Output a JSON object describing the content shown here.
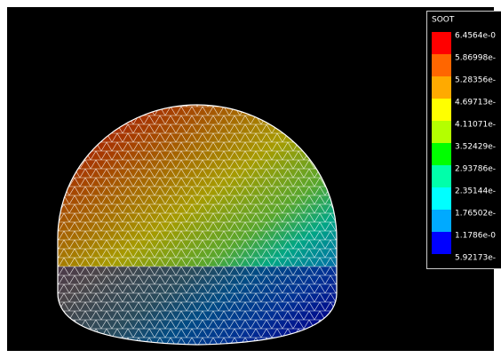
{
  "legend": {
    "title": "SOOT",
    "colors": [
      "#ff0000",
      "#ff6600",
      "#ffaa00",
      "#ffff00",
      "#b4ff00",
      "#00ff00",
      "#00ffaa",
      "#00ffff",
      "#00aaff",
      "#0000ff"
    ],
    "labels": [
      "6.4564e-0",
      "5.86998e-",
      "5.28356e-",
      "4.69713e-",
      "4.11071e-",
      "3.52429e-",
      "2.93786e-",
      "2.35144e-",
      "1.76502e-",
      "1.1786e-0",
      "5.92173e-"
    ]
  }
}
